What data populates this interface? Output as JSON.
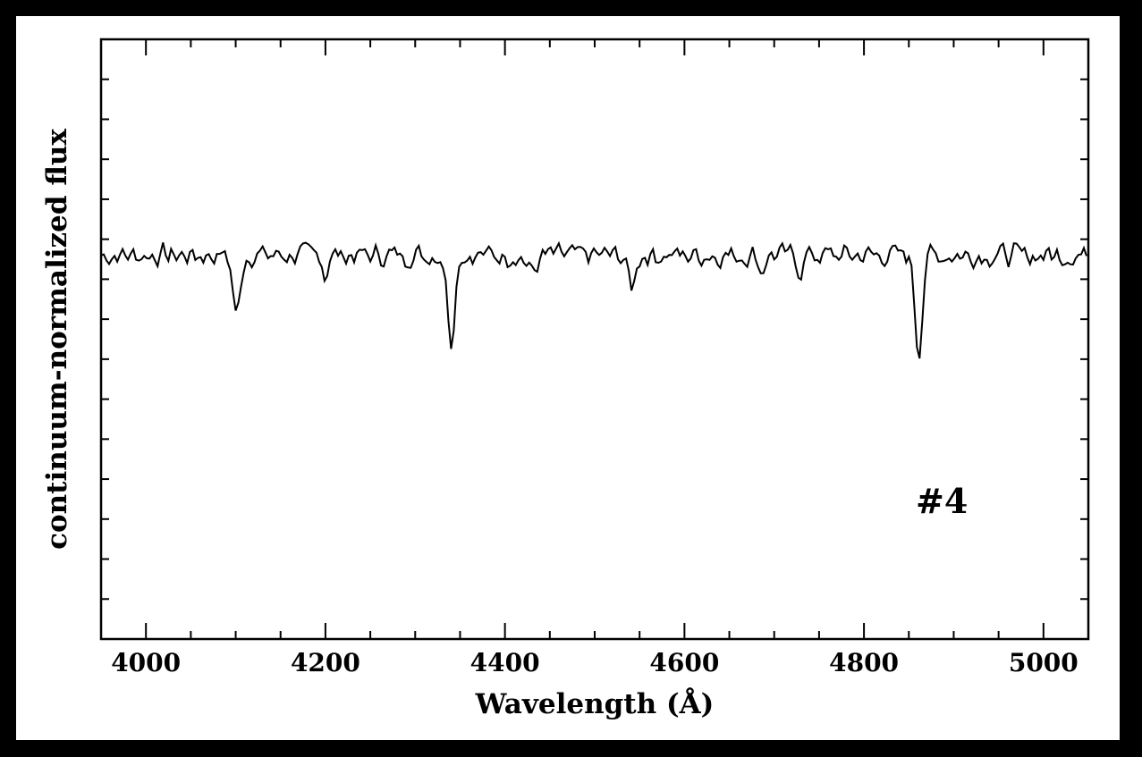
{
  "chart_data": {
    "type": "line",
    "title": "",
    "xlabel": "Wavelength (Å)",
    "ylabel": "continuum-normalized flux",
    "annotation": "#4",
    "xlim": [
      3950,
      5050
    ],
    "ylim": [
      0,
      1.5
    ],
    "x_ticks": [
      4000,
      4200,
      4400,
      4600,
      4800,
      5000
    ],
    "x_minor_step": 50,
    "y_minor_step": 0.1,
    "grid": false,
    "legend": "none",
    "line_color": "#000000",
    "continuum": 0.96,
    "noise_amp": 0.035,
    "noise_seed": 7,
    "sample_step": 3,
    "absorption_lines": [
      {
        "center": 4101,
        "depth": 0.15,
        "width": 4
      },
      {
        "center": 4200,
        "depth": 0.06,
        "width": 2
      },
      {
        "center": 4340,
        "depth": 0.21,
        "width": 4
      },
      {
        "center": 4430,
        "depth": 0.04,
        "width": 6
      },
      {
        "center": 4541,
        "depth": 0.08,
        "width": 4
      },
      {
        "center": 4686,
        "depth": 0.04,
        "width": 3
      },
      {
        "center": 4729,
        "depth": 0.04,
        "width": 3
      },
      {
        "center": 4861,
        "depth": 0.24,
        "width": 4
      }
    ]
  }
}
